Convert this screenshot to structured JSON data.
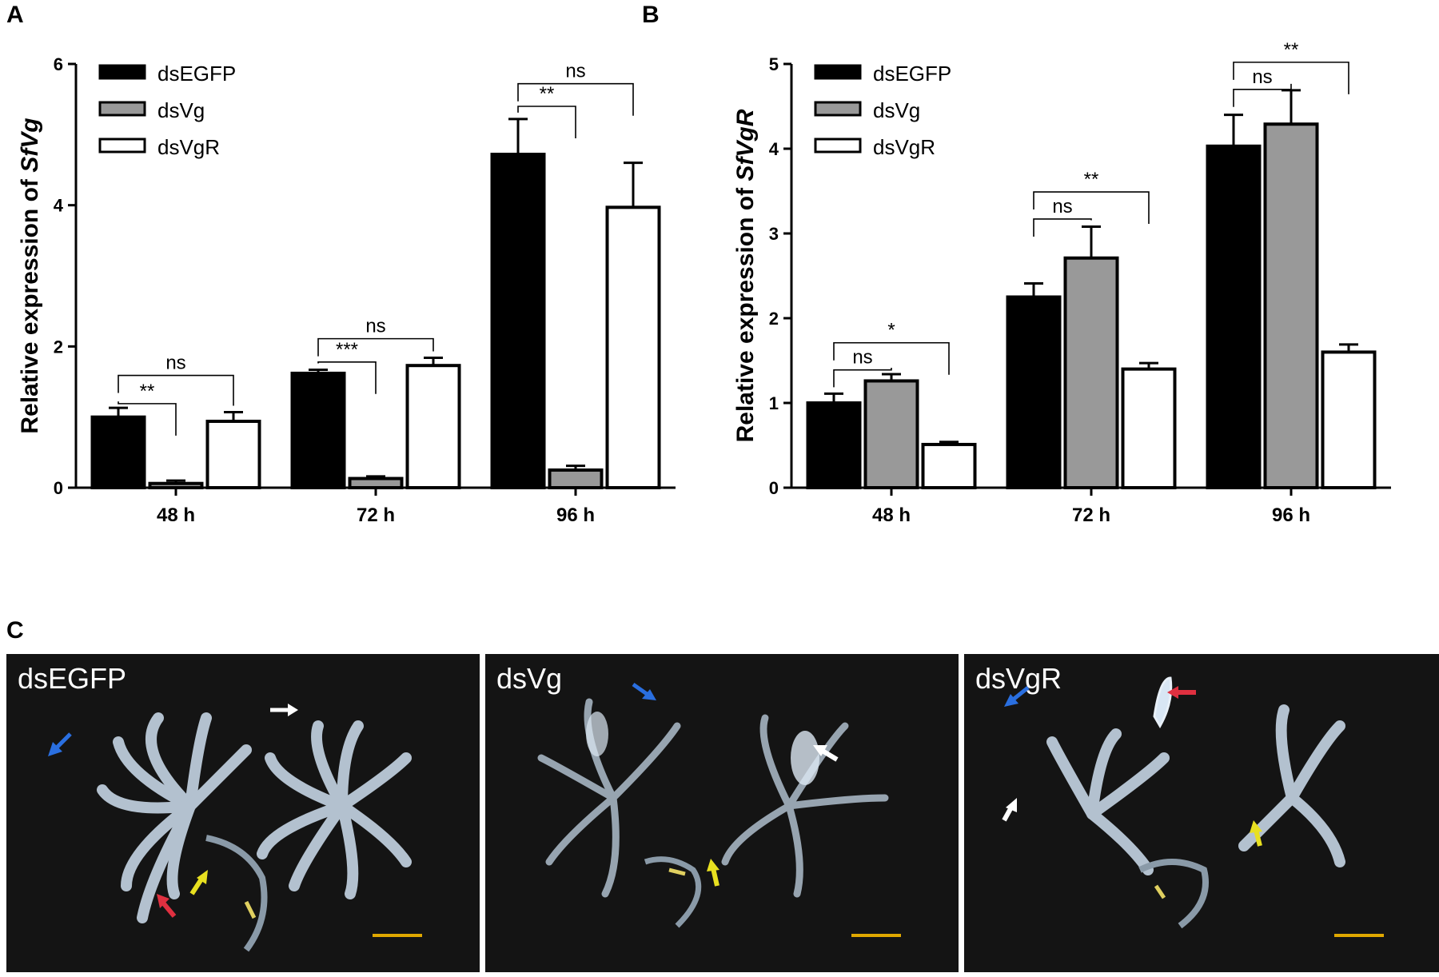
{
  "panels": {
    "a": "A",
    "b": "B",
    "c": "C"
  },
  "colors": {
    "dsEGFP": "#000000",
    "dsVg": "#999999",
    "dsVgR": "#ffffff",
    "scale_bar": "#e0a800"
  },
  "chart_data": [
    {
      "type": "bar",
      "categories": [
        "48 h",
        "72 h",
        "96 h"
      ],
      "ylabel_prefix": "Relative expression of ",
      "ylabel_gene": "SfVg",
      "ylim": [
        0,
        6
      ],
      "yticks": [
        0,
        2,
        4,
        6
      ],
      "legend": [
        "dsEGFP",
        "dsVg",
        "dsVgR"
      ],
      "series": [
        {
          "name": "dsEGFP",
          "values": [
            1.0,
            1.62,
            4.72
          ],
          "errors": [
            0.13,
            0.05,
            0.5
          ]
        },
        {
          "name": "dsVg",
          "values": [
            0.06,
            0.13,
            0.25
          ],
          "errors": [
            0.04,
            0.03,
            0.06
          ]
        },
        {
          "name": "dsVgR",
          "values": [
            0.94,
            1.73,
            3.97
          ],
          "errors": [
            0.13,
            0.11,
            0.63
          ]
        }
      ],
      "significance": [
        {
          "group": 0,
          "from": 0,
          "to": 1,
          "label": "**",
          "level": 1.19
        },
        {
          "group": 0,
          "from": 0,
          "to": 2,
          "label": "ns",
          "level": 1.59
        },
        {
          "group": 1,
          "from": 0,
          "to": 1,
          "label": "***",
          "level": 1.78
        },
        {
          "group": 1,
          "from": 0,
          "to": 2,
          "label": "ns",
          "level": 2.11
        },
        {
          "group": 2,
          "from": 0,
          "to": 1,
          "label": "**",
          "level": 5.4
        },
        {
          "group": 2,
          "from": 0,
          "to": 2,
          "label": "ns",
          "level": 5.72
        }
      ]
    },
    {
      "type": "bar",
      "categories": [
        "48 h",
        "72 h",
        "96 h"
      ],
      "ylabel_prefix": "Relative expression of ",
      "ylabel_gene": "SfVgR",
      "ylim": [
        0,
        5
      ],
      "yticks": [
        0,
        1,
        2,
        3,
        4,
        5
      ],
      "legend": [
        "dsEGFP",
        "dsVg",
        "dsVgR"
      ],
      "series": [
        {
          "name": "dsEGFP",
          "values": [
            1.0,
            2.25,
            4.03
          ],
          "errors": [
            0.11,
            0.16,
            0.37
          ]
        },
        {
          "name": "dsVg",
          "values": [
            1.26,
            2.71,
            4.29
          ],
          "errors": [
            0.08,
            0.37,
            0.4
          ]
        },
        {
          "name": "dsVgR",
          "values": [
            0.51,
            1.4,
            1.6
          ],
          "errors": [
            0.03,
            0.07,
            0.09
          ]
        }
      ],
      "significance": [
        {
          "group": 0,
          "from": 0,
          "to": 1,
          "label": "ns",
          "level": 1.39
        },
        {
          "group": 0,
          "from": 0,
          "to": 2,
          "label": "*",
          "level": 1.71
        },
        {
          "group": 1,
          "from": 0,
          "to": 1,
          "label": "ns",
          "level": 3.17
        },
        {
          "group": 1,
          "from": 0,
          "to": 2,
          "label": "**",
          "level": 3.49
        },
        {
          "group": 2,
          "from": 0,
          "to": 1,
          "label": "ns",
          "level": 4.7
        },
        {
          "group": 2,
          "from": 0,
          "to": 2,
          "label": "**",
          "level": 5.02
        }
      ]
    }
  ],
  "photos": [
    {
      "label": "dsEGFP",
      "arrows": [
        "blue-arrow-icon",
        "white-arrow-icon",
        "red-arrow-icon",
        "yellow-arrow-icon"
      ]
    },
    {
      "label": "dsVg",
      "arrows": [
        "blue-arrow-icon",
        "white-arrow-icon",
        "yellow-arrow-icon"
      ]
    },
    {
      "label": "dsVgR",
      "arrows": [
        "blue-arrow-icon",
        "red-arrow-icon",
        "white-arrow-icon",
        "yellow-arrow-icon"
      ]
    }
  ]
}
